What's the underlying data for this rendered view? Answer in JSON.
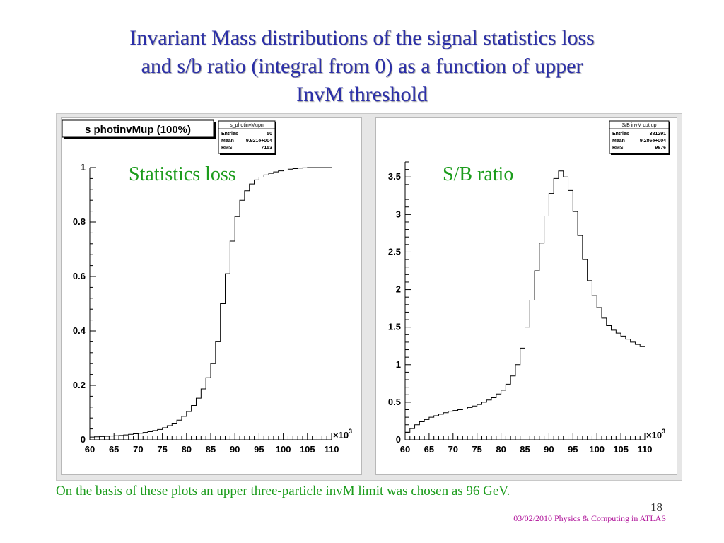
{
  "slide": {
    "title_lines": [
      "Invariant Mass distributions of the signal statistics loss",
      "and s/b ratio (integral from 0) as a function of upper",
      "InvM threshold"
    ],
    "footnote": "On the basis of these plots an upper three-particle invM limit was chosen as 96 GeV.",
    "slide_number": "18",
    "footer": "03/02/2010 Physics & Computing in ATLAS"
  },
  "colors": {
    "title": "#2b2fa8",
    "green_text": "#1c9c1c",
    "footer": "#b0139a",
    "canvas": "#e6e6e6",
    "histogram": "#000000"
  },
  "chart_data": [
    {
      "type": "line",
      "histogram_title": "s photinvMup (100%)",
      "overlay_label": "Statistics loss",
      "stats_box": {
        "name": "s_photinvMupn",
        "rows": [
          [
            "Entries",
            "50"
          ],
          [
            "Mean",
            "9.921e+004"
          ],
          [
            "RMS",
            "7153"
          ]
        ]
      },
      "xlim": [
        60,
        110
      ],
      "ylim": [
        0,
        1.0
      ],
      "x_ticks": [
        "60",
        "65",
        "70",
        "75",
        "80",
        "85",
        "90",
        "95",
        "100",
        "105",
        "110"
      ],
      "y_ticks": [
        "0",
        "0.2",
        "0.4",
        "0.6",
        "0.8",
        "1"
      ],
      "y_tick_values": [
        0,
        0.2,
        0.4,
        0.6,
        0.8,
        1
      ],
      "x_multiplier_label": "×10",
      "x_multiplier_exp": "3",
      "bin_edges_start": 60,
      "bin_width": 1,
      "values": [
        0.01,
        0.011,
        0.012,
        0.013,
        0.014,
        0.015,
        0.016,
        0.018,
        0.02,
        0.022,
        0.024,
        0.027,
        0.03,
        0.034,
        0.038,
        0.044,
        0.052,
        0.061,
        0.072,
        0.086,
        0.104,
        0.126,
        0.153,
        0.187,
        0.228,
        0.28,
        0.36,
        0.5,
        0.61,
        0.73,
        0.82,
        0.88,
        0.915,
        0.94,
        0.955,
        0.965,
        0.973,
        0.979,
        0.984,
        0.988,
        0.991,
        0.994,
        0.996,
        0.998,
        0.999,
        1.0,
        1.0,
        1.0,
        1.0,
        1.0
      ]
    },
    {
      "type": "line",
      "histogram_title": "",
      "overlay_label": "S/B ratio",
      "stats_box": {
        "name": "S/B invM cut up",
        "rows": [
          [
            "Entries",
            "381291"
          ],
          [
            "Mean",
            "9.286e+004"
          ],
          [
            "RMS",
            "9876"
          ]
        ]
      },
      "xlim": [
        60,
        110
      ],
      "ylim": [
        0,
        3.7
      ],
      "x_ticks": [
        "60",
        "65",
        "70",
        "75",
        "80",
        "85",
        "90",
        "95",
        "100",
        "105",
        "110"
      ],
      "y_ticks": [
        "0",
        "0.5",
        "1",
        "1.5",
        "2",
        "2.5",
        "3",
        "3.5"
      ],
      "y_tick_values": [
        0,
        0.5,
        1,
        1.5,
        2,
        2.5,
        3,
        3.5
      ],
      "x_multiplier_label": "×10",
      "x_multiplier_exp": "3",
      "bin_edges_start": 60,
      "bin_width": 1,
      "values": [
        0.1,
        0.15,
        0.2,
        0.24,
        0.27,
        0.3,
        0.32,
        0.34,
        0.36,
        0.38,
        0.39,
        0.4,
        0.41,
        0.43,
        0.45,
        0.47,
        0.5,
        0.53,
        0.56,
        0.61,
        0.66,
        0.74,
        0.85,
        1.0,
        1.22,
        1.5,
        1.86,
        2.25,
        2.62,
        2.98,
        3.28,
        3.48,
        3.58,
        3.5,
        3.32,
        3.04,
        2.72,
        2.4,
        2.12,
        1.92,
        1.76,
        1.62,
        1.52,
        1.46,
        1.42,
        1.38,
        1.34,
        1.3,
        1.27,
        1.24
      ]
    }
  ]
}
